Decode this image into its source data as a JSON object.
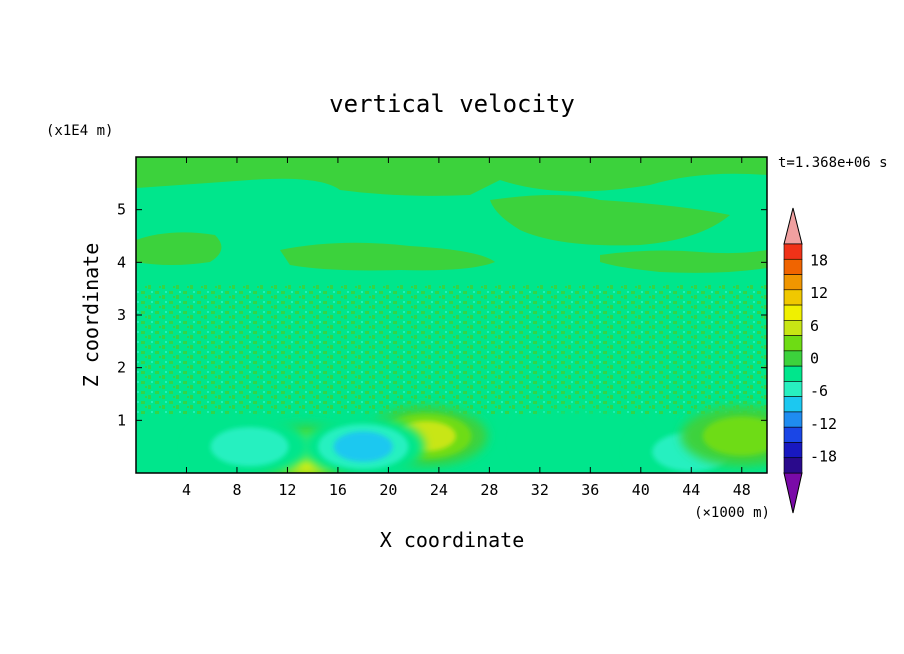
{
  "chart_data": {
    "type": "heatmap",
    "title": "vertical velocity",
    "xlabel": "X coordinate",
    "ylabel": "Z coordinate",
    "x_unit": "(×1000 m)",
    "y_unit": "(x1E4 m)",
    "time_label": "t=1.368e+06 s",
    "xlim": [
      0,
      50
    ],
    "ylim": [
      0,
      6
    ],
    "x_ticks": [
      4,
      8,
      12,
      16,
      20,
      24,
      28,
      32,
      36,
      40,
      44,
      48
    ],
    "y_ticks": [
      1,
      2,
      3,
      4,
      5
    ],
    "colorbar": {
      "levels": [
        -21,
        -18,
        -15,
        -12,
        -9,
        -6,
        -3,
        0,
        3,
        6,
        9,
        12,
        15,
        18,
        21
      ],
      "tick_labels": [
        "18",
        "12",
        "6",
        "0",
        "-6",
        "-12",
        "-18"
      ],
      "tick_values": [
        18,
        12,
        6,
        0,
        -6,
        -12,
        -18
      ],
      "colors": [
        "#7a0aa8",
        "#2a0a8c",
        "#1818c0",
        "#1a46e6",
        "#1f8cf0",
        "#1cc8f0",
        "#28f0c0",
        "#00e68c",
        "#3cd23c",
        "#6edc14",
        "#c8e614",
        "#f0f000",
        "#f0c800",
        "#f09600",
        "#f06400",
        "#f03218",
        "#f0a0a0"
      ]
    },
    "features": [
      {
        "x": 13.5,
        "z": 0.35,
        "value": 12
      },
      {
        "x": 23,
        "z": 0.7,
        "value": 10
      },
      {
        "x": 18,
        "z": 0.5,
        "value": -10
      },
      {
        "x": 9,
        "z": 0.5,
        "value": -5
      },
      {
        "x": 35,
        "z": 0.6,
        "value": -4
      },
      {
        "x": 44,
        "z": 0.4,
        "value": -5
      },
      {
        "x": 48,
        "z": 0.7,
        "value": 5
      }
    ]
  }
}
